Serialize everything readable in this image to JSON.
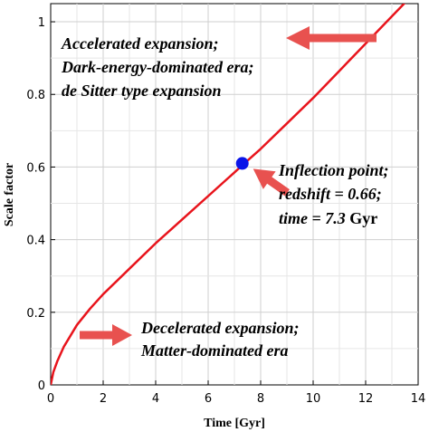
{
  "chart_data": {
    "type": "line",
    "xlabel": "Time [Gyr]",
    "ylabel": "Scale factor",
    "xlim": [
      0,
      14
    ],
    "ylim": [
      0,
      1.05
    ],
    "x_ticks": [
      "0",
      "2",
      "4",
      "6",
      "8",
      "10",
      "12",
      "14"
    ],
    "y_ticks": [
      "0",
      "0.2",
      "0.4",
      "0.6",
      "0.8",
      "1"
    ],
    "grid": true,
    "series": [
      {
        "color": "#e8141c",
        "x": [
          0,
          0.1,
          0.25,
          0.5,
          1.0,
          1.5,
          2.0,
          3.0,
          4.0,
          5.0,
          6.0,
          7.0,
          7.3,
          8.0,
          9.0,
          10.0,
          11.0,
          12.0,
          13.0,
          13.8
        ],
        "y": [
          0,
          0.035,
          0.065,
          0.105,
          0.165,
          0.21,
          0.25,
          0.32,
          0.39,
          0.455,
          0.52,
          0.585,
          0.605,
          0.65,
          0.72,
          0.79,
          0.865,
          0.94,
          1.015,
          1.075
        ]
      }
    ],
    "inflection_point": {
      "x": 7.3,
      "y": 0.61,
      "color": "#0a14e8"
    },
    "annotations": {
      "accelerated": [
        "Accelerated expansion;",
        "Dark-energy-dominated era;",
        "de Sitter type expansion"
      ],
      "inflection": {
        "line1": "Inflection point;",
        "line2": "redshift = 0.66;",
        "line3_italic": "time = 7.3",
        "line3_unit": " Gyr"
      },
      "decelerated": [
        "Decelerated expansion;",
        "Matter-dominated era"
      ]
    },
    "arrow_color": "#e8514f"
  }
}
